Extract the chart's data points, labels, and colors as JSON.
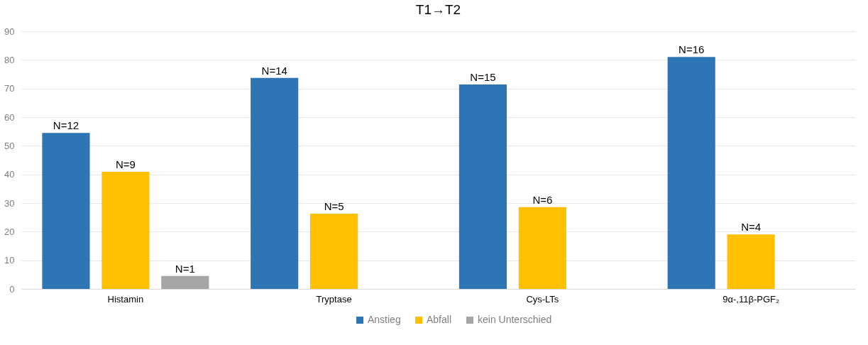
{
  "chart_data": {
    "type": "bar",
    "title": "T1→T2",
    "categories": [
      "Histamin",
      "Tryptase",
      "Cys-LTs",
      "9α-,11β-PGF₂"
    ],
    "series": [
      {
        "name": "Anstieg",
        "color": "#2e75b6",
        "values": [
          54.5,
          73.7,
          71.4,
          81
        ]
      },
      {
        "name": "Abfall",
        "color": "#ffc000",
        "values": [
          40.9,
          26.3,
          28.6,
          19
        ]
      },
      {
        "name": "kein Unterschied",
        "color": "#a5a5a5",
        "values": [
          4.5,
          null,
          null,
          null
        ]
      }
    ],
    "annotations": [
      "N=12",
      "N=9",
      "N=1",
      "N=14",
      "N=5",
      "N=15",
      "N=6",
      "N=16",
      "N=4"
    ],
    "ylim": [
      0,
      90
    ],
    "yticks": [
      0,
      10,
      20,
      30,
      40,
      50,
      60,
      70,
      80,
      90
    ],
    "grid": "y",
    "legend": "bottom"
  }
}
